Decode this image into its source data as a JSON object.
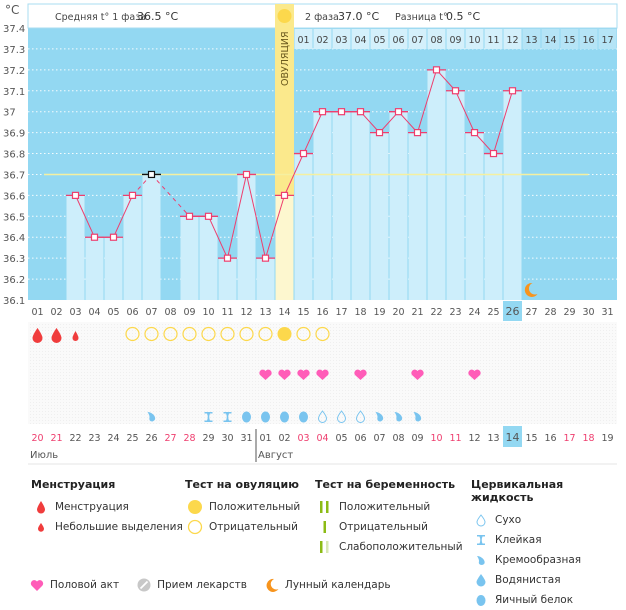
{
  "chart_data": {
    "type": "bar",
    "ylabel": "°C",
    "ylim": [
      36.1,
      37.4
    ],
    "yticks": [
      "37.4",
      "37.3",
      "37.2",
      "37.1",
      "37",
      "36.9",
      "36.8",
      "36.7",
      "36.6",
      "36.5",
      "36.4",
      "36.3",
      "36.2",
      "36.1"
    ],
    "cover_line": 36.7,
    "cycle_days": [
      "01",
      "02",
      "03",
      "04",
      "05",
      "06",
      "07",
      "08",
      "09",
      "10",
      "11",
      "12",
      "13",
      "14",
      "15",
      "16",
      "17",
      "18",
      "19",
      "20",
      "21",
      "22",
      "23",
      "24",
      "25",
      "26",
      "27",
      "28",
      "29",
      "30",
      "31"
    ],
    "current_cycle_day": "26",
    "temperatures": [
      null,
      null,
      36.6,
      36.4,
      36.4,
      36.6,
      36.7,
      null,
      36.5,
      36.5,
      36.3,
      36.7,
      36.3,
      36.6,
      36.8,
      37.0,
      37.0,
      37.0,
      36.9,
      37.0,
      36.9,
      37.2,
      37.1,
      36.9,
      36.8,
      37.1,
      null,
      null,
      null,
      null,
      null
    ],
    "excluded_points": [
      "07"
    ],
    "ovulation_day": "14",
    "ovulation_label": "ОВУЛЯЦИЯ",
    "phase2_days": [
      "01",
      "02",
      "03",
      "04",
      "05",
      "06",
      "07",
      "08",
      "09",
      "10",
      "11",
      "12",
      "13",
      "14",
      "15",
      "16",
      "17"
    ],
    "phase1_summary": {
      "label": "Средняя t° 1 фаза",
      "value": "36.5 °C"
    },
    "phase2_summary": {
      "label": "2 фаза",
      "value": "37.0 °C"
    },
    "difference_summary": {
      "label": "Разница t°",
      "value": "0.5 °C"
    },
    "moon_day": "27",
    "menstruation": [
      "heavy",
      "heavy",
      "light",
      null,
      null,
      null,
      null,
      null,
      null,
      null,
      null,
      null,
      null,
      null,
      null,
      null,
      null,
      null,
      null,
      null,
      null,
      null,
      null,
      null,
      null,
      null,
      null,
      null,
      null,
      null,
      null
    ],
    "ovulation_test": [
      null,
      null,
      null,
      null,
      null,
      "neg",
      "neg",
      "neg",
      "neg",
      "neg",
      "neg",
      "neg",
      "neg",
      "pos",
      "neg",
      "neg",
      null,
      null,
      null,
      null,
      null,
      null,
      null,
      null,
      null,
      null,
      null,
      null,
      null,
      null,
      null
    ],
    "intercourse": [
      false,
      false,
      false,
      false,
      false,
      false,
      false,
      false,
      false,
      false,
      false,
      false,
      true,
      true,
      true,
      true,
      false,
      true,
      false,
      false,
      true,
      false,
      false,
      true,
      false,
      false,
      false,
      false,
      false,
      false,
      false
    ],
    "cervical_fluid": [
      null,
      null,
      null,
      null,
      null,
      null,
      "creamy",
      null,
      null,
      "sticky",
      "sticky",
      "eggwhite",
      "eggwhite",
      "eggwhite",
      "eggwhite",
      "dry",
      "dry",
      "dry",
      "creamy",
      "creamy",
      "creamy",
      null,
      null,
      null,
      null,
      null,
      null,
      null,
      null,
      null,
      null
    ],
    "calendar_dates": [
      "20",
      "21",
      "22",
      "23",
      "24",
      "25",
      "26",
      "27",
      "28",
      "29",
      "30",
      "31",
      "01",
      "02",
      "03",
      "04",
      "05",
      "06",
      "07",
      "08",
      "09",
      "10",
      "11",
      "12",
      "13",
      "14",
      "15",
      "16",
      "17",
      "18",
      "19"
    ],
    "weekend_dates": [
      true,
      true,
      false,
      false,
      false,
      false,
      false,
      true,
      true,
      false,
      false,
      false,
      false,
      false,
      true,
      true,
      false,
      false,
      false,
      false,
      false,
      true,
      true,
      false,
      false,
      false,
      false,
      false,
      true,
      true,
      false
    ],
    "today_date_index": 25,
    "months": [
      {
        "label": "Июль",
        "start_index": 0
      },
      {
        "label": "Август",
        "start_index": 12
      }
    ]
  },
  "legend": {
    "menstruation": {
      "title": "Менструация",
      "items": [
        "Менструация",
        "Небольшие выделения"
      ]
    },
    "ovulation_test": {
      "title": "Тест на овуляцию",
      "items": [
        "Положительный",
        "Отрицательный"
      ]
    },
    "pregnancy_test": {
      "title": "Тест на беременность",
      "items": [
        "Положительный",
        "Отрицательный",
        "Слабоположительный"
      ]
    },
    "cervical_fluid": {
      "title": "Цервикальная жидкость",
      "items": [
        "Сухо",
        "Клейкая",
        "Кремообразная",
        "Водянистая",
        "Яичный белок"
      ]
    },
    "other": [
      "Половой акт",
      "Прием лекарств",
      "Лунный календарь"
    ]
  },
  "colors": {
    "sky": "#93d8f2",
    "bar": "#cdeefb",
    "line": "#ee3e6e",
    "ovulation": "#fbe98c",
    "cover": "#f5f0a0",
    "blood": "#f03c3c",
    "heart": "#ff5cb8",
    "sun": "#fcd84c",
    "fluid": "#79c4ef",
    "moon": "#f7941d",
    "green": "#8cbb15",
    "weekend": "#ee3e6e"
  }
}
